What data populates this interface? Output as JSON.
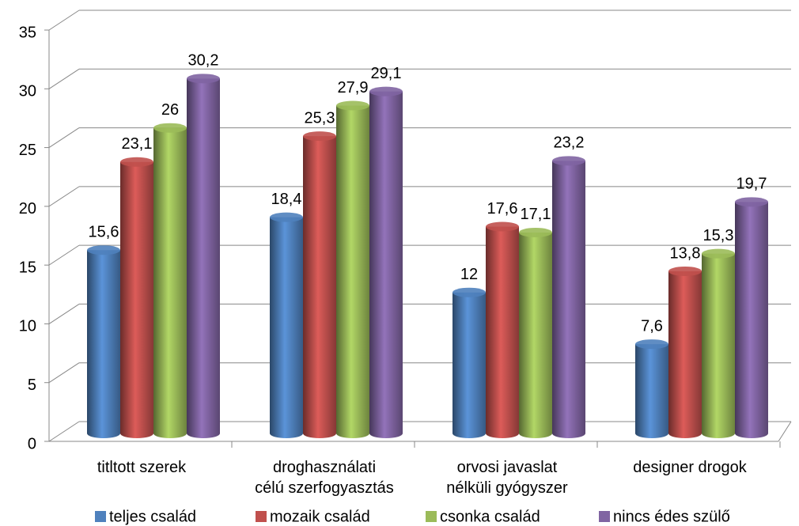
{
  "chart_data": {
    "type": "bar3d",
    "categories": [
      "titltott szerek",
      "droghasználati\ncélú szerfogyasztás",
      "orvosi javaslat\nnélküli gyógyszer",
      "designer drogok"
    ],
    "series": [
      {
        "name": "teljes család",
        "color": "#4f81bd",
        "values": [
          15.6,
          18.4,
          12,
          7.6
        ],
        "value_labels": [
          "15,6",
          "18,4",
          "12",
          "7,6"
        ]
      },
      {
        "name": "mozaik család",
        "color": "#c0504d",
        "values": [
          23.1,
          25.3,
          17.6,
          13.8
        ],
        "value_labels": [
          "23,1",
          "25,3",
          "17,6",
          "13,8"
        ]
      },
      {
        "name": "csonka család",
        "color": "#9bbb59",
        "values": [
          26,
          27.9,
          17.1,
          15.3
        ],
        "value_labels": [
          "26",
          "27,9",
          "17,1",
          "15,3"
        ]
      },
      {
        "name": "nincs édes szülő",
        "color": "#8064a2",
        "values": [
          30.2,
          29.1,
          23.2,
          19.7
        ],
        "value_labels": [
          "30,2",
          "29,1",
          "23,2",
          "19,7"
        ]
      }
    ],
    "ylim": [
      0,
      35
    ],
    "yticks": [
      0,
      5,
      10,
      15,
      20,
      25,
      30,
      35
    ],
    "grid": true,
    "legend": "bottom"
  }
}
